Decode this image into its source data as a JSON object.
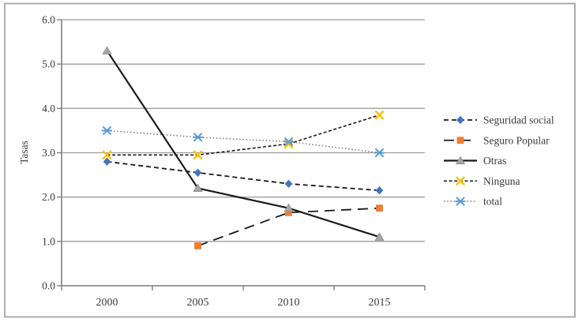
{
  "chart_data": {
    "type": "line",
    "title": "",
    "xlabel": "",
    "ylabel": "Tasas",
    "categories": [
      "2000",
      "2005",
      "2010",
      "2015"
    ],
    "ylim": [
      0,
      6
    ],
    "yticks": [
      {
        "value": 0,
        "label": "0.0"
      },
      {
        "value": 1,
        "label": "1.0"
      },
      {
        "value": 2,
        "label": "2.0"
      },
      {
        "value": 3,
        "label": "3.0"
      },
      {
        "value": 4,
        "label": "4.0"
      },
      {
        "value": 5,
        "label": "5.0"
      },
      {
        "value": 6,
        "label": "6.0"
      }
    ],
    "grid": true,
    "legend_position": "right",
    "series": [
      {
        "name": "Seguridad social",
        "marker": "diamond",
        "marker_color": "#4472C4",
        "line_color": "#1a1a1a",
        "dash": "6 4",
        "line_width": 1.8,
        "values": [
          2.8,
          2.55,
          2.3,
          2.15
        ]
      },
      {
        "name": "Seguro Popular",
        "marker": "square",
        "marker_color": "#ED7D31",
        "line_color": "#1a1a1a",
        "dash": "13 8",
        "line_width": 1.8,
        "values": [
          null,
          0.9,
          1.65,
          1.75
        ]
      },
      {
        "name": "Otras",
        "marker": "triangle",
        "marker_color": "#A5A5A5",
        "line_color": "#1a1a1a",
        "dash": "",
        "line_width": 2.2,
        "values": [
          5.3,
          2.2,
          1.75,
          1.1
        ]
      },
      {
        "name": "Ninguna",
        "marker": "x",
        "marker_color": "#FFC000",
        "line_color": "#1a1a1a",
        "dash": "4 2.6",
        "line_width": 1.6,
        "values": [
          2.95,
          2.95,
          3.2,
          3.85
        ]
      },
      {
        "name": "total",
        "marker": "asterisk",
        "marker_color": "#5B9BD5",
        "line_color": "#7F7F7F",
        "dash": "1.6 2.6",
        "line_width": 1.5,
        "values": [
          3.5,
          3.35,
          3.25,
          3.0
        ]
      }
    ],
    "colors": {
      "background": "#FFFFFF",
      "border": "#A6A6A6",
      "gridline": "#9E9E9E",
      "axis": "#7F7F7F",
      "text": "#3B3B3B"
    }
  }
}
